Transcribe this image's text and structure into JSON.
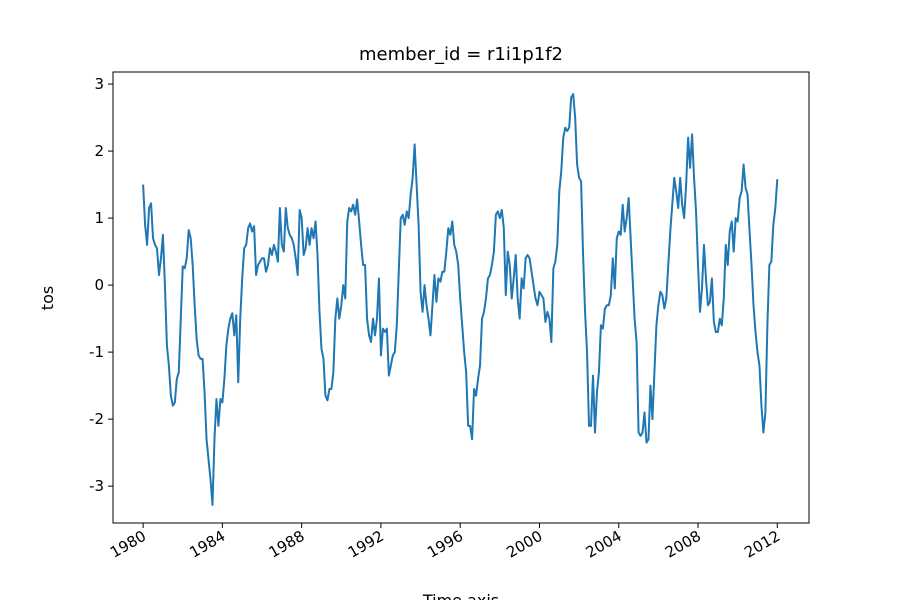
{
  "chart_data": {
    "type": "line",
    "title": "member_id = r1i1p1f2",
    "ylabel": "tos",
    "xlabel": "Time axis",
    "color": "#1f77b4",
    "xlim": [
      1978.48,
      2013.6
    ],
    "xticks": [
      1980,
      1984,
      1988,
      1992,
      1996,
      2000,
      2004,
      2008,
      2012
    ],
    "ylim": [
      -3.55,
      3.18
    ],
    "yticks": [
      -3,
      -2,
      -1,
      0,
      1,
      2,
      3
    ],
    "x": [
      1980,
      1980.1,
      1980.2,
      1980.3,
      1980.4,
      1980.5,
      1980.6,
      1980.7,
      1980.8,
      1980.9,
      1981,
      1981.1,
      1981.2,
      1981.3,
      1981.4,
      1981.5,
      1981.6,
      1981.7,
      1981.8,
      1981.9,
      1982,
      1982.1,
      1982.2,
      1982.3,
      1982.4,
      1982.5,
      1982.6,
      1982.7,
      1982.8,
      1982.9,
      1983,
      1983.1,
      1983.2,
      1983.3,
      1983.4,
      1983.5,
      1983.6,
      1983.7,
      1983.8,
      1983.9,
      1984,
      1984.1,
      1984.2,
      1984.3,
      1984.4,
      1984.5,
      1984.6,
      1984.7,
      1984.8,
      1984.9,
      1985,
      1985.1,
      1985.2,
      1985.3,
      1985.4,
      1985.5,
      1985.6,
      1985.7,
      1985.8,
      1985.9,
      1986,
      1986.1,
      1986.2,
      1986.3,
      1986.4,
      1986.5,
      1986.6,
      1986.7,
      1986.8,
      1986.9,
      1987,
      1987.1,
      1987.2,
      1987.3,
      1987.4,
      1987.5,
      1987.6,
      1987.7,
      1987.8,
      1987.9,
      1988,
      1988.1,
      1988.2,
      1988.3,
      1988.4,
      1988.5,
      1988.6,
      1988.7,
      1988.8,
      1988.9,
      1989,
      1989.1,
      1989.2,
      1989.3,
      1989.4,
      1989.5,
      1989.6,
      1989.7,
      1989.8,
      1989.9,
      1990,
      1990.1,
      1990.2,
      1990.3,
      1990.4,
      1990.5,
      1990.6,
      1990.7,
      1990.8,
      1990.9,
      1991,
      1991.1,
      1991.2,
      1991.3,
      1991.4,
      1991.5,
      1991.6,
      1991.7,
      1991.8,
      1991.9,
      1992,
      1992.1,
      1992.2,
      1992.3,
      1992.4,
      1992.5,
      1992.6,
      1992.7,
      1992.8,
      1992.9,
      1993,
      1993.1,
      1993.2,
      1993.3,
      1993.4,
      1993.5,
      1993.6,
      1993.7,
      1993.8,
      1993.9,
      1994,
      1994.1,
      1994.2,
      1994.3,
      1994.4,
      1994.5,
      1994.6,
      1994.7,
      1994.8,
      1994.9,
      1995,
      1995.1,
      1995.2,
      1995.3,
      1995.4,
      1995.5,
      1995.6,
      1995.7,
      1995.8,
      1995.9,
      1996,
      1996.1,
      1996.2,
      1996.3,
      1996.4,
      1996.5,
      1996.6,
      1996.7,
      1996.8,
      1996.9,
      1997,
      1997.1,
      1997.2,
      1997.3,
      1997.4,
      1997.5,
      1997.6,
      1997.7,
      1997.8,
      1997.9,
      1998,
      1998.1,
      1998.2,
      1998.3,
      1998.4,
      1998.5,
      1998.6,
      1998.7,
      1998.8,
      1998.9,
      1999,
      1999.1,
      1999.2,
      1999.3,
      1999.4,
      1999.5,
      1999.6,
      1999.7,
      1999.8,
      1999.9,
      2000,
      2000.1,
      2000.2,
      2000.3,
      2000.4,
      2000.5,
      2000.6,
      2000.7,
      2000.8,
      2000.9,
      2001,
      2001.1,
      2001.2,
      2001.3,
      2001.4,
      2001.5,
      2001.6,
      2001.7,
      2001.8,
      2001.9,
      2002,
      2002.1,
      2002.2,
      2002.3,
      2002.4,
      2002.5,
      2002.6,
      2002.7,
      2002.8,
      2002.9,
      2003,
      2003.1,
      2003.2,
      2003.3,
      2003.4,
      2003.5,
      2003.6,
      2003.7,
      2003.8,
      2003.9,
      2004,
      2004.1,
      2004.2,
      2004.3,
      2004.4,
      2004.5,
      2004.6,
      2004.7,
      2004.8,
      2004.9,
      2005,
      2005.1,
      2005.2,
      2005.3,
      2005.4,
      2005.5,
      2005.6,
      2005.7,
      2005.8,
      2005.9,
      2006,
      2006.1,
      2006.2,
      2006.3,
      2006.4,
      2006.5,
      2006.6,
      2006.7,
      2006.8,
      2006.9,
      2007,
      2007.1,
      2007.2,
      2007.3,
      2007.4,
      2007.5,
      2007.6,
      2007.7,
      2007.8,
      2007.9,
      2008,
      2008.1,
      2008.2,
      2008.3,
      2008.4,
      2008.5,
      2008.6,
      2008.7,
      2008.8,
      2008.9,
      2009,
      2009.1,
      2009.2,
      2009.3,
      2009.4,
      2009.5,
      2009.6,
      2009.7,
      2009.8,
      2009.9,
      2010,
      2010.1,
      2010.2,
      2010.3,
      2010.4,
      2010.5,
      2010.6,
      2010.7,
      2010.8,
      2010.9,
      2011,
      2011.1,
      2011.2,
      2011.3,
      2011.4,
      2011.5,
      2011.6,
      2011.7,
      2011.8,
      2011.9,
      2012
    ],
    "values": [
      1.5,
      0.9,
      0.6,
      1.15,
      1.22,
      0.7,
      0.6,
      0.55,
      0.15,
      0.4,
      0.75,
      0.0,
      -0.9,
      -1.2,
      -1.65,
      -1.8,
      -1.75,
      -1.4,
      -1.3,
      -0.5,
      0.28,
      0.25,
      0.4,
      0.82,
      0.7,
      0.3,
      -0.3,
      -0.8,
      -1.05,
      -1.1,
      -1.1,
      -1.6,
      -2.3,
      -2.6,
      -2.9,
      -3.28,
      -2.3,
      -1.7,
      -2.1,
      -1.7,
      -1.75,
      -1.4,
      -0.9,
      -0.65,
      -0.5,
      -0.42,
      -0.75,
      -0.45,
      -1.45,
      -0.5,
      0.1,
      0.55,
      0.6,
      0.85,
      0.92,
      0.8,
      0.88,
      0.15,
      0.3,
      0.35,
      0.4,
      0.4,
      0.2,
      0.3,
      0.55,
      0.45,
      0.6,
      0.5,
      0.35,
      1.15,
      0.6,
      0.5,
      1.15,
      0.85,
      0.75,
      0.7,
      0.6,
      0.4,
      0.15,
      1.12,
      1.0,
      0.45,
      0.55,
      0.85,
      0.6,
      0.85,
      0.7,
      0.95,
      0.45,
      -0.4,
      -0.95,
      -1.1,
      -1.65,
      -1.72,
      -1.55,
      -1.55,
      -1.3,
      -0.5,
      -0.2,
      -0.5,
      -0.3,
      0.0,
      -0.2,
      0.95,
      1.15,
      1.1,
      1.2,
      1.05,
      1.28,
      0.95,
      0.6,
      0.3,
      0.3,
      -0.5,
      -0.75,
      -0.85,
      -0.5,
      -0.75,
      -0.5,
      0.1,
      -1.05,
      -0.65,
      -0.7,
      -0.65,
      -1.35,
      -1.2,
      -1.05,
      -1.0,
      -0.6,
      0.2,
      1.0,
      1.05,
      0.9,
      1.1,
      1.0,
      1.35,
      1.6,
      2.1,
      1.5,
      0.9,
      -0.1,
      -0.4,
      0.0,
      -0.3,
      -0.5,
      -0.75,
      -0.3,
      0.15,
      -0.25,
      0.1,
      0.05,
      0.2,
      0.2,
      0.5,
      0.85,
      0.75,
      0.95,
      0.6,
      0.5,
      0.3,
      -0.2,
      -0.6,
      -1.0,
      -1.3,
      -2.1,
      -2.1,
      -2.3,
      -1.55,
      -1.65,
      -1.4,
      -1.2,
      -0.5,
      -0.4,
      -0.2,
      0.1,
      0.15,
      0.3,
      0.5,
      1.05,
      1.1,
      1.0,
      1.12,
      0.85,
      -0.15,
      0.5,
      0.3,
      -0.2,
      0.1,
      0.45,
      -0.2,
      -0.5,
      0.1,
      -0.05,
      0.4,
      0.45,
      0.4,
      0.2,
      0.0,
      -0.2,
      -0.3,
      -0.1,
      -0.15,
      -0.2,
      -0.55,
      -0.4,
      -0.5,
      -0.85,
      0.25,
      0.35,
      0.6,
      1.4,
      1.7,
      2.2,
      2.35,
      2.3,
      2.35,
      2.8,
      2.85,
      2.5,
      1.8,
      1.6,
      1.55,
      0.45,
      -0.4,
      -1.0,
      -2.1,
      -2.1,
      -1.35,
      -2.2,
      -1.6,
      -1.3,
      -0.6,
      -0.65,
      -0.35,
      -0.3,
      -0.3,
      -0.15,
      0.4,
      -0.05,
      0.7,
      0.8,
      0.75,
      1.2,
      0.8,
      1.0,
      1.3,
      0.7,
      0.1,
      -0.5,
      -0.85,
      -2.2,
      -2.25,
      -2.2,
      -1.9,
      -2.35,
      -2.3,
      -1.5,
      -2.0,
      -1.3,
      -0.6,
      -0.3,
      -0.1,
      -0.15,
      -0.35,
      -0.2,
      0.3,
      0.8,
      1.2,
      1.6,
      1.4,
      1.15,
      1.6,
      1.2,
      1.0,
      1.5,
      2.2,
      1.75,
      2.25,
      1.6,
      1.1,
      0.3,
      -0.4,
      -0.05,
      0.6,
      0.1,
      -0.3,
      -0.25,
      0.1,
      -0.55,
      -0.7,
      -0.7,
      -0.5,
      -0.6,
      -0.2,
      0.6,
      0.3,
      0.8,
      0.95,
      0.5,
      1.0,
      0.95,
      1.3,
      1.4,
      1.8,
      1.45,
      1.35,
      0.8,
      0.3,
      -0.3,
      -0.7,
      -1.0,
      -1.2,
      -1.8,
      -2.2,
      -1.9,
      -0.6,
      0.3,
      0.35,
      0.9,
      1.15,
      1.58
    ]
  }
}
